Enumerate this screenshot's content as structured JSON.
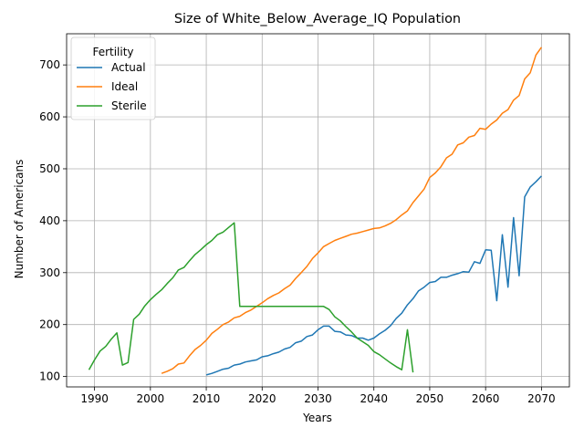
{
  "chart_data": {
    "type": "line",
    "title": "Size of White_Below_Average_IQ Population",
    "xlabel": "Years",
    "ylabel": "Number of Americans",
    "xlim": [
      1985,
      2075
    ],
    "ylim": [
      80,
      760
    ],
    "xticks": [
      1990,
      2000,
      2010,
      2020,
      2030,
      2040,
      2050,
      2060,
      2070
    ],
    "yticks": [
      100,
      200,
      300,
      400,
      500,
      600,
      700
    ],
    "grid": true,
    "legend": {
      "title": "Fertility",
      "placement": "top-left"
    },
    "series": [
      {
        "name": "Actual",
        "color": "#1f77b4",
        "x": [
          2010,
          2011,
          2012,
          2013,
          2014,
          2015,
          2016,
          2017,
          2018,
          2019,
          2020,
          2021,
          2022,
          2023,
          2024,
          2025,
          2026,
          2027,
          2028,
          2029,
          2030,
          2031,
          2032,
          2033,
          2034,
          2035,
          2036,
          2037,
          2038,
          2039,
          2040,
          2041,
          2042,
          2043,
          2044,
          2045,
          2046,
          2047,
          2048,
          2049,
          2050,
          2051,
          2052,
          2053,
          2054,
          2055,
          2056,
          2057,
          2058,
          2059,
          2060,
          2061,
          2062,
          2063,
          2064,
          2065,
          2066,
          2067,
          2068,
          2069,
          2070
        ],
        "y": [
          103,
          106,
          110,
          114,
          116,
          122,
          124,
          128,
          130,
          132,
          138,
          140,
          144,
          147,
          153,
          156,
          165,
          168,
          177,
          180,
          190,
          197,
          197,
          187,
          186,
          180,
          179,
          174,
          174,
          170,
          174,
          182,
          189,
          198,
          212,
          222,
          238,
          250,
          265,
          272,
          281,
          283,
          291,
          291,
          295,
          298,
          302,
          301,
          321,
          318,
          344,
          343,
          246,
          373,
          272,
          406,
          294,
          446,
          465,
          475,
          486
        ]
      },
      {
        "name": "Ideal",
        "color": "#ff7f0e",
        "x": [
          2002,
          2003,
          2004,
          2005,
          2006,
          2007,
          2008,
          2009,
          2010,
          2011,
          2012,
          2013,
          2014,
          2015,
          2016,
          2017,
          2018,
          2019,
          2020,
          2021,
          2022,
          2023,
          2024,
          2025,
          2026,
          2027,
          2028,
          2029,
          2030,
          2031,
          2032,
          2033,
          2034,
          2035,
          2036,
          2037,
          2038,
          2039,
          2040,
          2041,
          2042,
          2043,
          2044,
          2045,
          2046,
          2047,
          2048,
          2049,
          2050,
          2051,
          2052,
          2053,
          2054,
          2055,
          2056,
          2057,
          2058,
          2059,
          2060,
          2061,
          2062,
          2063,
          2064,
          2065,
          2066,
          2067,
          2068,
          2069,
          2070
        ],
        "y": [
          106,
          110,
          115,
          124,
          126,
          140,
          152,
          160,
          170,
          183,
          191,
          200,
          205,
          213,
          216,
          223,
          228,
          235,
          242,
          250,
          256,
          261,
          269,
          276,
          289,
          300,
          312,
          327,
          338,
          350,
          356,
          362,
          366,
          370,
          374,
          376,
          379,
          382,
          385,
          386,
          390,
          395,
          402,
          411,
          419,
          435,
          448,
          461,
          483,
          492,
          504,
          521,
          528,
          546,
          550,
          561,
          564,
          578,
          576,
          586,
          594,
          607,
          614,
          632,
          641,
          673,
          685,
          719,
          734
        ]
      },
      {
        "name": "Sterile",
        "color": "#2ca02c",
        "x": [
          1989,
          1990,
          1991,
          1992,
          1993,
          1994,
          1995,
          1996,
          1997,
          1998,
          1999,
          2000,
          2001,
          2002,
          2003,
          2004,
          2005,
          2006,
          2007,
          2008,
          2009,
          2010,
          2011,
          2012,
          2013,
          2014,
          2015,
          2016,
          2017,
          2018,
          2019,
          2020,
          2021,
          2022,
          2023,
          2024,
          2025,
          2026,
          2027,
          2028,
          2029,
          2030,
          2031,
          2032,
          2033,
          2034,
          2035,
          2036,
          2037,
          2038,
          2039,
          2040,
          2041,
          2042,
          2043,
          2044,
          2045,
          2046,
          2047
        ],
        "y": [
          113,
          132,
          149,
          158,
          172,
          184,
          122,
          127,
          210,
          220,
          236,
          248,
          258,
          267,
          279,
          290,
          305,
          310,
          323,
          335,
          344,
          354,
          362,
          373,
          378,
          387,
          396,
          235,
          235,
          235,
          235,
          235,
          235,
          235,
          235,
          235,
          235,
          235,
          235,
          235,
          235,
          235,
          235,
          229,
          215,
          207,
          196,
          186,
          174,
          167,
          160,
          148,
          142,
          134,
          126,
          119,
          113,
          190,
          108
        ]
      }
    ]
  }
}
